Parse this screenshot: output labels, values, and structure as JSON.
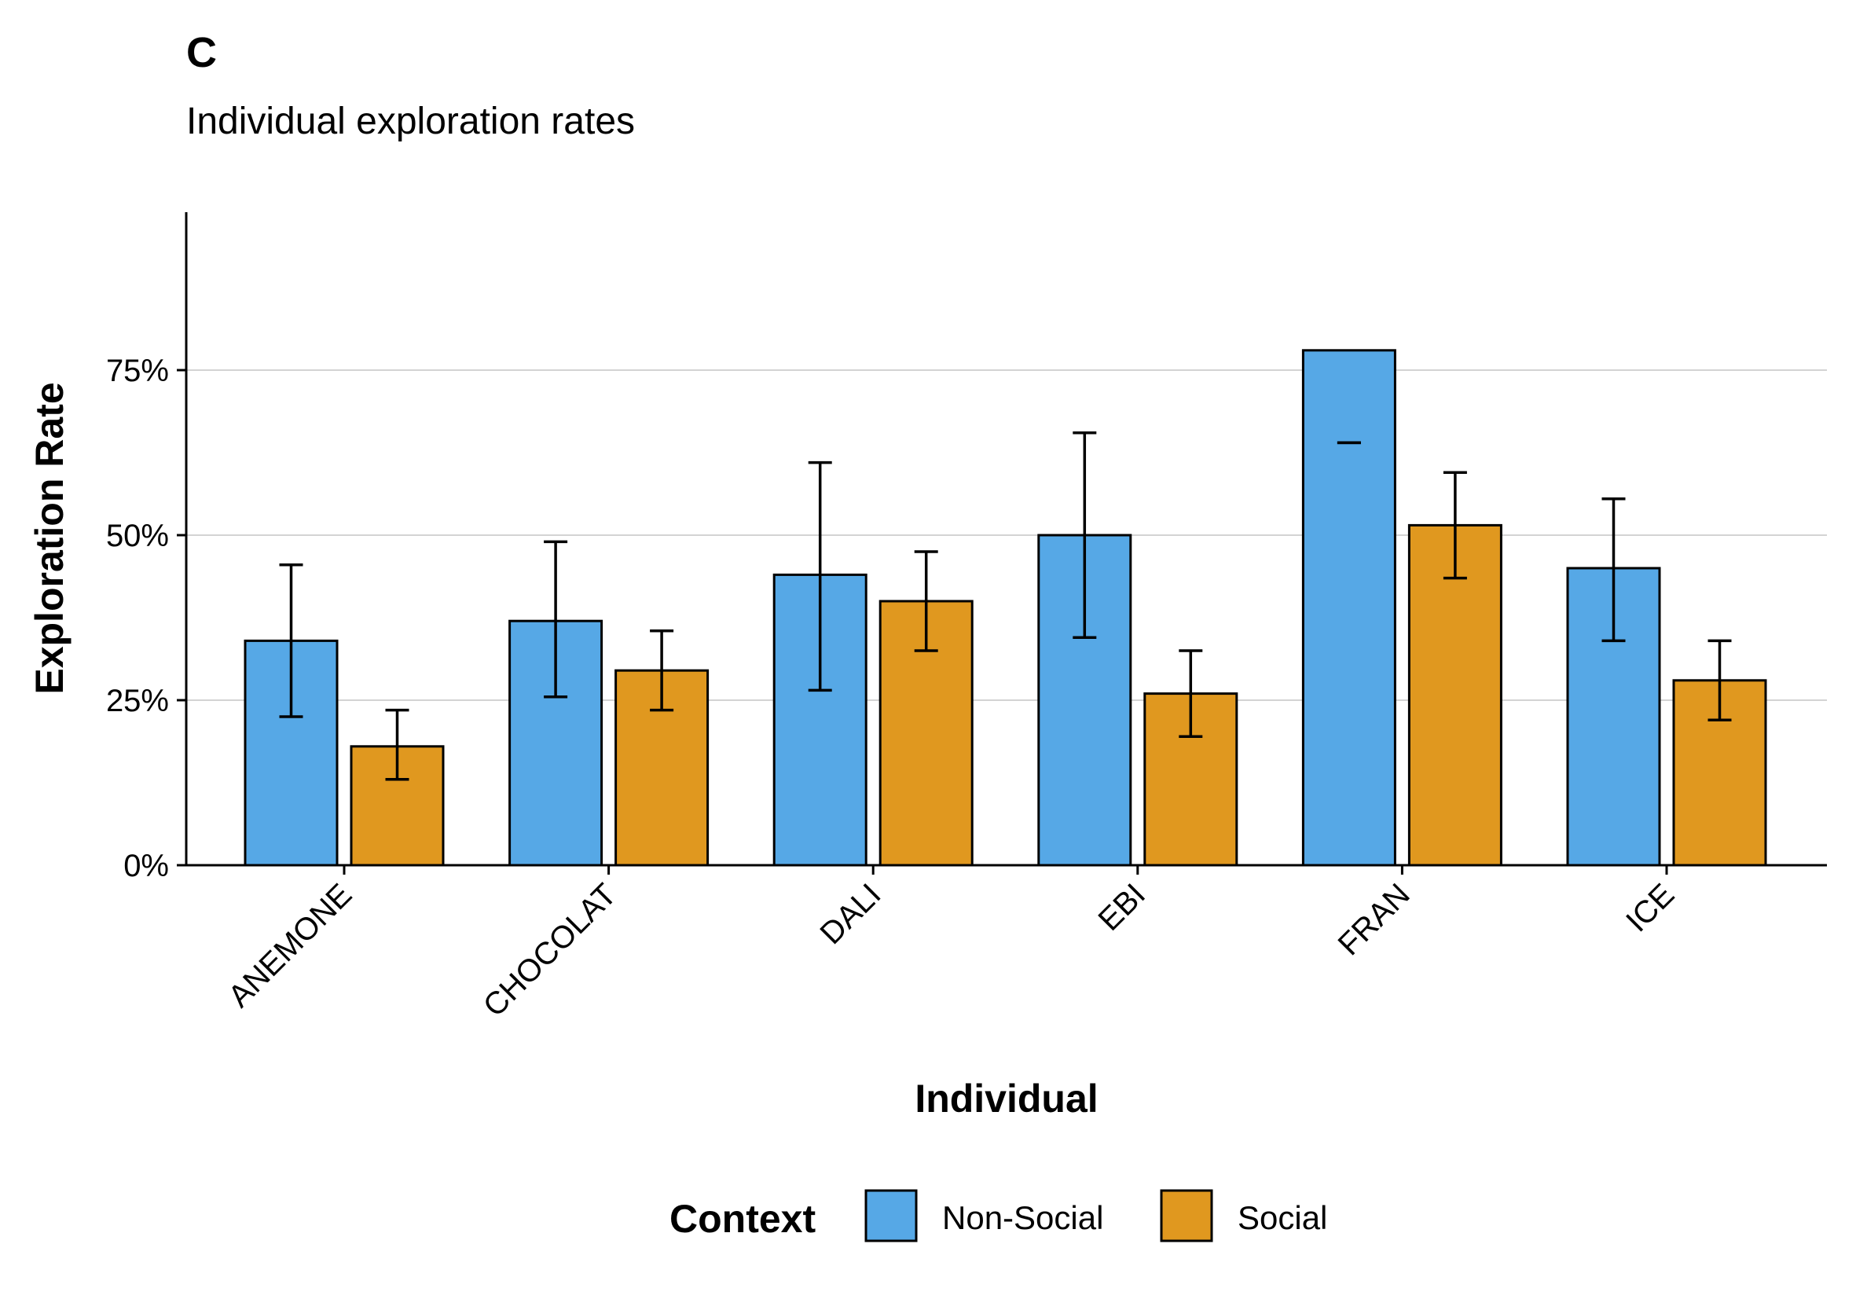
{
  "chart_data": {
    "type": "bar",
    "tag": "C",
    "title": "Individual exploration rates",
    "xlabel": "Individual",
    "ylabel": "Exploration Rate",
    "categories": [
      "ANEMONE",
      "CHOCOLAT",
      "DALI",
      "EBI",
      "FRAN",
      "ICE"
    ],
    "series": [
      {
        "name": "Non-Social",
        "color": "#56a8e6",
        "values": [
          34,
          37,
          44,
          50,
          78,
          45
        ],
        "error_low": [
          22.5,
          25.5,
          26.5,
          34.5,
          64,
          34
        ],
        "error_high": [
          45.5,
          49,
          61,
          65.5,
          64,
          55.5
        ]
      },
      {
        "name": "Social",
        "color": "#e0981f",
        "values": [
          18,
          29.5,
          40,
          26,
          51.5,
          28
        ],
        "error_low": [
          13,
          23.5,
          32.5,
          19.5,
          43.5,
          22
        ],
        "error_high": [
          23.5,
          35.5,
          47.5,
          32.5,
          59.5,
          34
        ]
      }
    ],
    "ylim": [
      0,
      100
    ],
    "yticks": [
      0,
      25,
      50,
      75
    ],
    "ytick_labels": [
      "0%",
      "25%",
      "50%",
      "75%"
    ],
    "grid": "horizontal-major",
    "legend": {
      "title": "Context",
      "position": "bottom",
      "items": [
        "Non-Social",
        "Social"
      ]
    }
  }
}
